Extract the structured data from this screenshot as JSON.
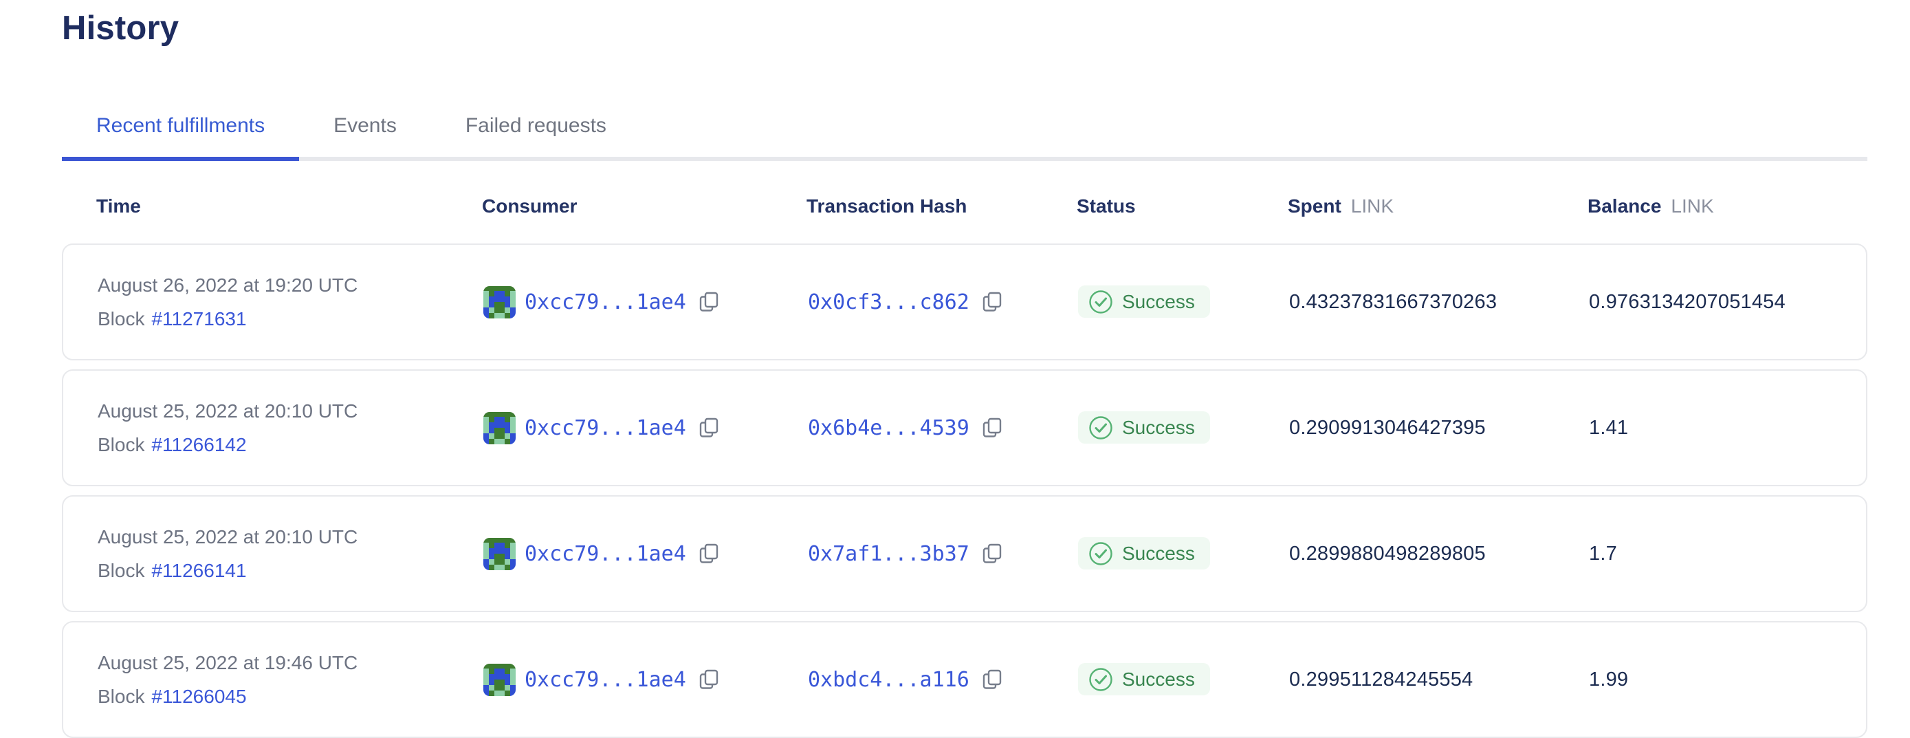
{
  "page": {
    "title": "History"
  },
  "tabs": [
    {
      "label": "Recent fulfillments",
      "active": true
    },
    {
      "label": "Events",
      "active": false
    },
    {
      "label": "Failed requests",
      "active": false
    }
  ],
  "table": {
    "headers": {
      "time": "Time",
      "consumer": "Consumer",
      "transaction_hash": "Transaction Hash",
      "status": "Status",
      "spent": "Spent",
      "balance": "Balance",
      "unit": "LINK"
    },
    "rows": [
      {
        "date": "August 26, 2022 at 19:20 UTC",
        "block_label": "Block",
        "block_number": "#11271631",
        "consumer_address": "0xcc79...1ae4",
        "transaction_hash": "0x0cf3...c862",
        "status": "Success",
        "spent": "0.43237831667370263",
        "balance": "0.9763134207051454"
      },
      {
        "date": "August 25, 2022 at 20:10 UTC",
        "block_label": "Block",
        "block_number": "#11266142",
        "consumer_address": "0xcc79...1ae4",
        "transaction_hash": "0x6b4e...4539",
        "status": "Success",
        "spent": "0.2909913046427395",
        "balance": "1.41"
      },
      {
        "date": "August 25, 2022 at 20:10 UTC",
        "block_label": "Block",
        "block_number": "#11266141",
        "consumer_address": "0xcc79...1ae4",
        "transaction_hash": "0x7af1...3b37",
        "status": "Success",
        "spent": "0.2899880498289805",
        "balance": "1.7"
      },
      {
        "date": "August 25, 2022 at 19:46 UTC",
        "block_label": "Block",
        "block_number": "#11266045",
        "consumer_address": "0xcc79...1ae4",
        "transaction_hash": "0xbdc4...a116",
        "status": "Success",
        "spent": "0.299511284245554",
        "balance": "1.99"
      }
    ]
  },
  "identicon": {
    "colors": {
      "G": "#3e7c30",
      "B": "#2f4fd2",
      "T": "#8fd0aa"
    },
    "pattern": [
      "GGGGGG",
      "TGBBGT",
      "TBBBBT",
      "TBGGBT",
      "BTGGTB",
      "BGTTGB"
    ]
  },
  "colors": {
    "accent_blue": "#375BD2",
    "link_blue": "#3a57d8",
    "title_navy": "#1e2c5f",
    "success_green": "#38854f",
    "success_badge_bg": "#f0f9f2",
    "muted_gray": "#6d7382",
    "card_border": "#e8e9ec"
  }
}
